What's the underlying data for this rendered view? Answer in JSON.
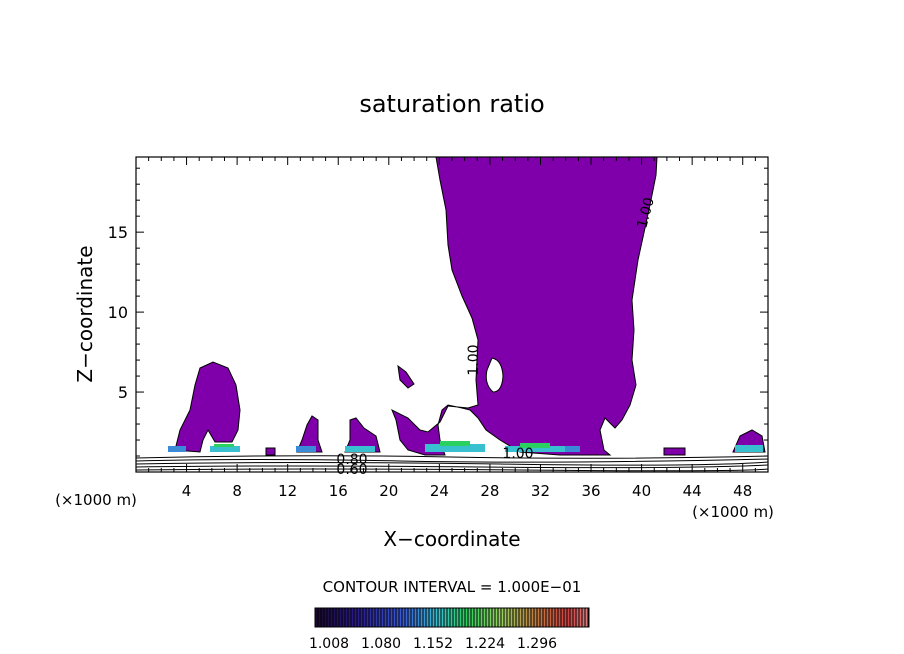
{
  "chart_data": {
    "type": "contour",
    "title": "saturation ratio",
    "xlabel": "X−coordinate",
    "ylabel": "Z−coordinate",
    "x_unit_left": "(×1000 m)",
    "x_unit_right": "(×1000 m)",
    "xlim": [
      0,
      50
    ],
    "ylim": [
      0,
      19.7
    ],
    "x_ticks": [
      4,
      8,
      12,
      16,
      20,
      24,
      28,
      32,
      36,
      40,
      44,
      48
    ],
    "y_ticks": [
      5,
      10,
      15
    ],
    "contour_labels": [
      {
        "text": "1.00",
        "x": 40.5,
        "z": 16.5,
        "angle": -75
      },
      {
        "text": "1.00",
        "x": 27.2,
        "z": 7.0,
        "angle": -90
      },
      {
        "text": "1.00",
        "x": 30.2,
        "z": 1.2,
        "angle": 0
      },
      {
        "text": "0.80",
        "x": 17.5,
        "z": 0.7,
        "angle": 0
      },
      {
        "text": "0.60",
        "x": 17.5,
        "z": 0.15,
        "angle": 0
      }
    ],
    "contour_interval_text": "CONTOUR INTERVAL = 1.000E−01",
    "colorbar": {
      "tick_labels": [
        "1.008",
        "1.080",
        "1.152",
        "1.224",
        "1.296"
      ],
      "colors": [
        "#1a0a2e",
        "#2b1a8a",
        "#3a5ad8",
        "#39c0d0",
        "#2ad060",
        "#9ad060",
        "#c08040",
        "#d04040",
        "#e08080"
      ]
    },
    "fill_color": "#7f00aa"
  }
}
